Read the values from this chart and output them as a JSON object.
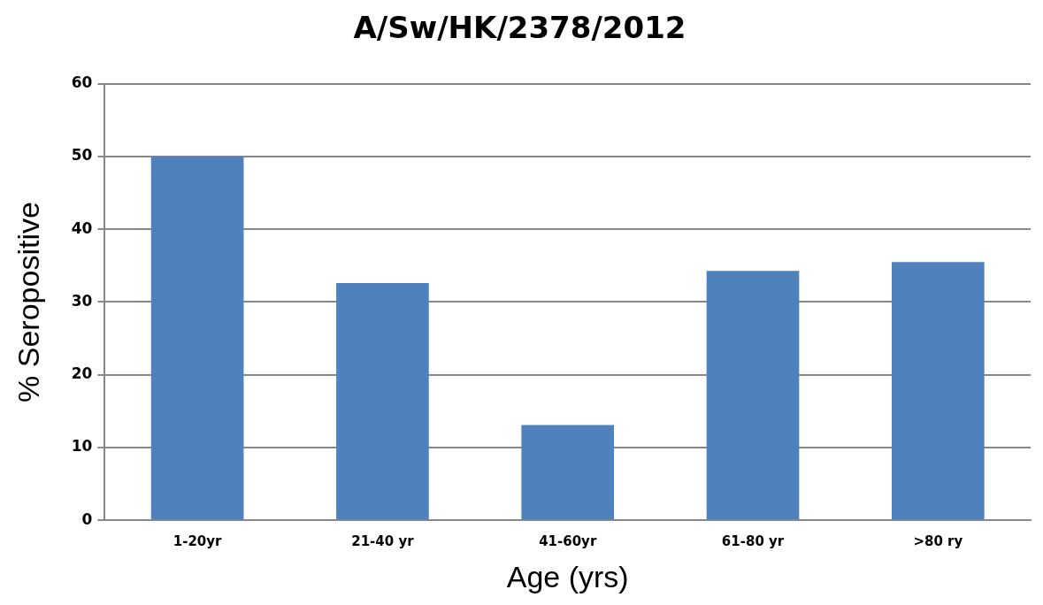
{
  "chart_data": {
    "type": "bar",
    "title": "A/Sw/HK/2378/2012",
    "xlabel": "Age (yrs)",
    "ylabel": "% Seropositive",
    "categories": [
      "1-20yr",
      "21-40 yr",
      "41-60yr",
      "61-80 yr",
      ">80 ry"
    ],
    "values": [
      50,
      32.6,
      13.1,
      34.3,
      35.5
    ],
    "color": "#4f81bd",
    "ylim": [
      0,
      60
    ],
    "yticks": [
      0,
      10,
      20,
      30,
      40,
      50,
      60
    ],
    "grid": "y",
    "legend": false
  }
}
